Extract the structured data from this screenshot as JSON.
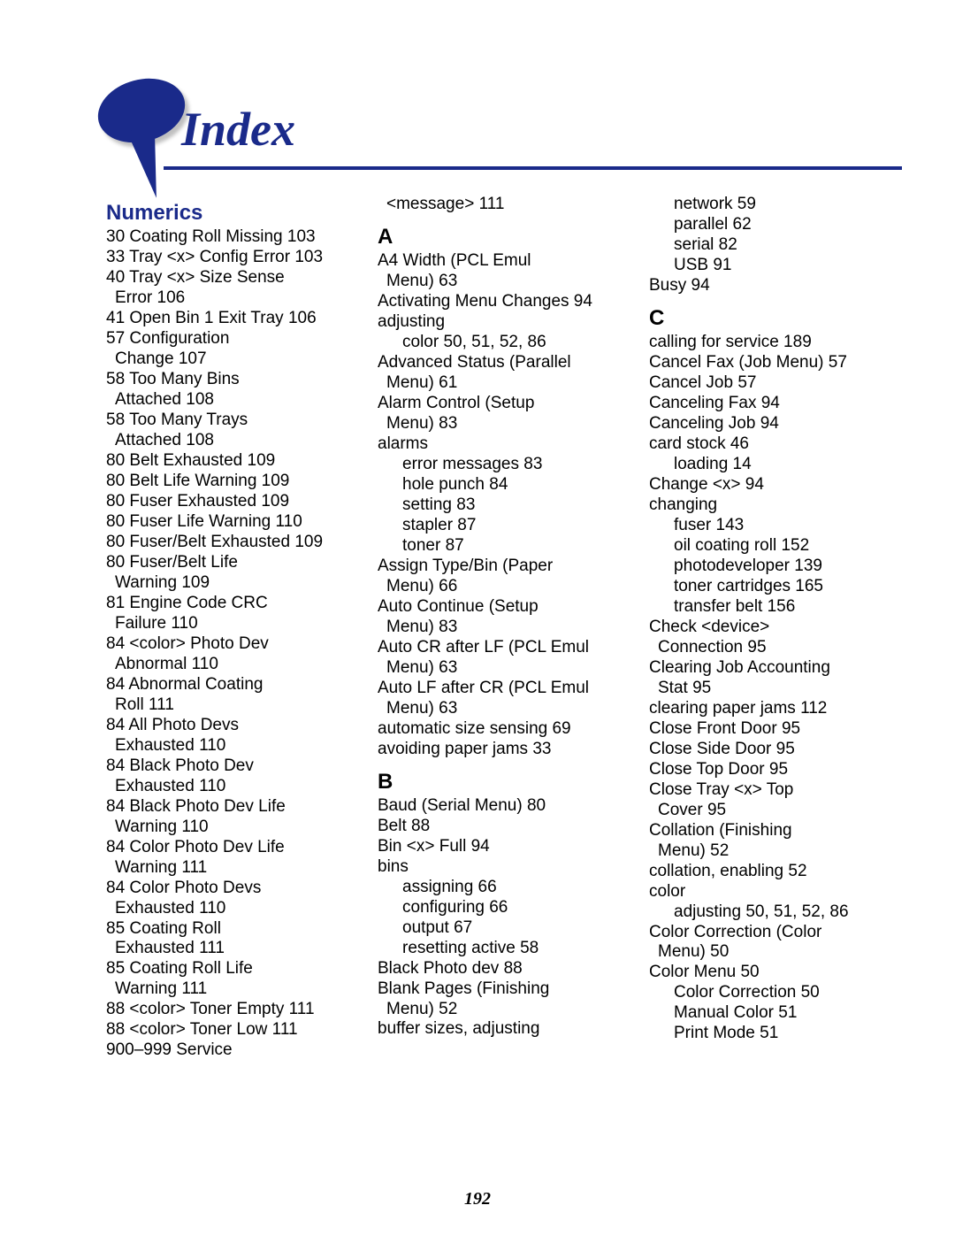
{
  "title": "Index",
  "page_number": "192",
  "colors": {
    "brand": "#1a2a8a",
    "text": "#000000",
    "background": "#ffffff"
  },
  "col1": {
    "heading": "Numerics",
    "lines": [
      {
        "cls": "entry",
        "text": "30 Coating Roll Missing  103"
      },
      {
        "cls": "entry",
        "text": "33 Tray <x> Config Error  103"
      },
      {
        "cls": "entry",
        "text": "40 Tray <x> Size Sense"
      },
      {
        "cls": "cont",
        "text": "Error  106"
      },
      {
        "cls": "entry",
        "text": "41 Open Bin 1 Exit Tray  106"
      },
      {
        "cls": "entry",
        "text": "57 Configuration"
      },
      {
        "cls": "cont",
        "text": "Change  107"
      },
      {
        "cls": "entry",
        "text": "58 Too Many Bins"
      },
      {
        "cls": "cont",
        "text": "Attached  108"
      },
      {
        "cls": "entry",
        "text": "58 Too Many Trays"
      },
      {
        "cls": "cont",
        "text": "Attached  108"
      },
      {
        "cls": "entry",
        "text": "80 Belt Exhausted  109"
      },
      {
        "cls": "entry",
        "text": "80 Belt Life Warning  109"
      },
      {
        "cls": "entry",
        "text": "80 Fuser Exhausted  109"
      },
      {
        "cls": "entry",
        "text": "80 Fuser Life Warning  110"
      },
      {
        "cls": "entry",
        "text": "80 Fuser/Belt Exhausted  109"
      },
      {
        "cls": "entry",
        "text": "80 Fuser/Belt Life"
      },
      {
        "cls": "cont",
        "text": "Warning  109"
      },
      {
        "cls": "entry",
        "text": "81 Engine Code CRC"
      },
      {
        "cls": "cont",
        "text": "Failure  110"
      },
      {
        "cls": "entry",
        "text": "84 <color> Photo Dev"
      },
      {
        "cls": "cont",
        "text": "Abnormal  110"
      },
      {
        "cls": "entry",
        "text": "84 Abnormal Coating"
      },
      {
        "cls": "cont",
        "text": "Roll  111"
      },
      {
        "cls": "entry",
        "text": "84 All Photo Devs"
      },
      {
        "cls": "cont",
        "text": "Exhausted  110"
      },
      {
        "cls": "entry",
        "text": "84 Black Photo Dev"
      },
      {
        "cls": "cont",
        "text": "Exhausted  110"
      },
      {
        "cls": "entry",
        "text": "84 Black Photo Dev Life"
      },
      {
        "cls": "cont",
        "text": "Warning  110"
      },
      {
        "cls": "entry",
        "text": "84 Color Photo Dev Life"
      },
      {
        "cls": "cont",
        "text": "Warning  111"
      },
      {
        "cls": "entry",
        "text": "84 Color Photo Devs"
      },
      {
        "cls": "cont",
        "text": "Exhausted  110"
      },
      {
        "cls": "entry",
        "text": "85 Coating Roll"
      },
      {
        "cls": "cont",
        "text": "Exhausted  111"
      },
      {
        "cls": "entry",
        "text": "85 Coating Roll Life"
      },
      {
        "cls": "cont",
        "text": "Warning  111"
      },
      {
        "cls": "entry",
        "text": "88 <color> Toner Empty  111"
      },
      {
        "cls": "entry",
        "text": "88 <color> Toner Low  111"
      },
      {
        "cls": "entry",
        "text": "900–999 Service"
      }
    ]
  },
  "col2": {
    "top_line": {
      "cls": "cont",
      "text": "<message>  111"
    },
    "heading_a": "A",
    "lines_a": [
      {
        "cls": "entry",
        "text": "A4 Width (PCL Emul"
      },
      {
        "cls": "cont",
        "text": "Menu)  63"
      },
      {
        "cls": "entry",
        "text": "Activating Menu Changes  94"
      },
      {
        "cls": "entry",
        "text": "adjusting"
      },
      {
        "cls": "sub",
        "text": "color  50, 51, 52, 86"
      },
      {
        "cls": "entry",
        "text": "Advanced Status (Parallel"
      },
      {
        "cls": "cont",
        "text": "Menu)  61"
      },
      {
        "cls": "entry",
        "text": "Alarm Control (Setup"
      },
      {
        "cls": "cont",
        "text": "Menu)  83"
      },
      {
        "cls": "entry",
        "text": "alarms"
      },
      {
        "cls": "sub",
        "text": "error messages  83"
      },
      {
        "cls": "sub",
        "text": "hole punch  84"
      },
      {
        "cls": "sub",
        "text": "setting  83"
      },
      {
        "cls": "sub",
        "text": "stapler  87"
      },
      {
        "cls": "sub",
        "text": "toner  87"
      },
      {
        "cls": "entry",
        "text": "Assign Type/Bin (Paper"
      },
      {
        "cls": "cont",
        "text": "Menu)  66"
      },
      {
        "cls": "entry",
        "text": "Auto Continue (Setup"
      },
      {
        "cls": "cont",
        "text": "Menu)  83"
      },
      {
        "cls": "entry",
        "text": "Auto CR after LF (PCL Emul"
      },
      {
        "cls": "cont",
        "text": "Menu)  63"
      },
      {
        "cls": "entry",
        "text": "Auto LF after CR (PCL Emul"
      },
      {
        "cls": "cont",
        "text": "Menu)  63"
      },
      {
        "cls": "entry",
        "text": "automatic size sensing  69"
      },
      {
        "cls": "entry",
        "text": "avoiding paper jams  33"
      }
    ],
    "heading_b": "B",
    "lines_b": [
      {
        "cls": "entry",
        "text": "Baud (Serial Menu)  80"
      },
      {
        "cls": "entry",
        "text": "Belt  88"
      },
      {
        "cls": "entry",
        "text": "Bin <x> Full  94"
      },
      {
        "cls": "entry",
        "text": "bins"
      },
      {
        "cls": "sub",
        "text": "assigning  66"
      },
      {
        "cls": "sub",
        "text": "configuring  66"
      },
      {
        "cls": "sub",
        "text": "output  67"
      },
      {
        "cls": "sub",
        "text": "resetting active  58"
      },
      {
        "cls": "entry",
        "text": "Black Photo dev  88"
      },
      {
        "cls": "entry",
        "text": "Blank Pages (Finishing"
      },
      {
        "cls": "cont",
        "text": "Menu)  52"
      },
      {
        "cls": "entry",
        "text": "buffer sizes, adjusting"
      }
    ]
  },
  "col3": {
    "top_lines": [
      {
        "cls": "sub",
        "text": "network  59"
      },
      {
        "cls": "sub",
        "text": "parallel  62"
      },
      {
        "cls": "sub",
        "text": "serial  82"
      },
      {
        "cls": "sub",
        "text": "USB  91"
      },
      {
        "cls": "entry",
        "text": "Busy  94"
      }
    ],
    "heading_c": "C",
    "lines_c": [
      {
        "cls": "entry",
        "text": "calling for service  189"
      },
      {
        "cls": "entry",
        "text": "Cancel Fax (Job Menu)  57"
      },
      {
        "cls": "entry",
        "text": "Cancel Job  57"
      },
      {
        "cls": "entry",
        "text": "Canceling Fax  94"
      },
      {
        "cls": "entry",
        "text": "Canceling Job  94"
      },
      {
        "cls": "entry",
        "text": "card stock  46"
      },
      {
        "cls": "sub",
        "text": "loading  14"
      },
      {
        "cls": "entry",
        "text": "Change <x>  94"
      },
      {
        "cls": "entry",
        "text": "changing"
      },
      {
        "cls": "sub",
        "text": "fuser  143"
      },
      {
        "cls": "sub",
        "text": "oil coating roll  152"
      },
      {
        "cls": "sub",
        "text": "photodeveloper  139"
      },
      {
        "cls": "sub",
        "text": "toner cartridges  165"
      },
      {
        "cls": "sub",
        "text": "transfer belt  156"
      },
      {
        "cls": "entry",
        "text": "Check <device>"
      },
      {
        "cls": "cont",
        "text": "Connection  95"
      },
      {
        "cls": "entry",
        "text": "Clearing Job Accounting"
      },
      {
        "cls": "cont",
        "text": "Stat  95"
      },
      {
        "cls": "entry",
        "text": "clearing paper jams  112"
      },
      {
        "cls": "entry",
        "text": "Close Front Door  95"
      },
      {
        "cls": "entry",
        "text": "Close Side Door  95"
      },
      {
        "cls": "entry",
        "text": "Close Top Door  95"
      },
      {
        "cls": "entry",
        "text": "Close Tray <x> Top"
      },
      {
        "cls": "cont",
        "text": "Cover  95"
      },
      {
        "cls": "entry",
        "text": "Collation (Finishing"
      },
      {
        "cls": "cont",
        "text": "Menu)  52"
      },
      {
        "cls": "entry",
        "text": "collation, enabling  52"
      },
      {
        "cls": "entry",
        "text": "color"
      },
      {
        "cls": "sub",
        "text": "adjusting  50, 51, 52, 86"
      },
      {
        "cls": "entry",
        "text": "Color Correction (Color"
      },
      {
        "cls": "cont",
        "text": "Menu)  50"
      },
      {
        "cls": "entry",
        "text": "Color Menu  50"
      },
      {
        "cls": "sub",
        "text": "Color Correction  50"
      },
      {
        "cls": "sub",
        "text": "Manual Color  51"
      },
      {
        "cls": "sub",
        "text": "Print Mode  51"
      }
    ]
  }
}
